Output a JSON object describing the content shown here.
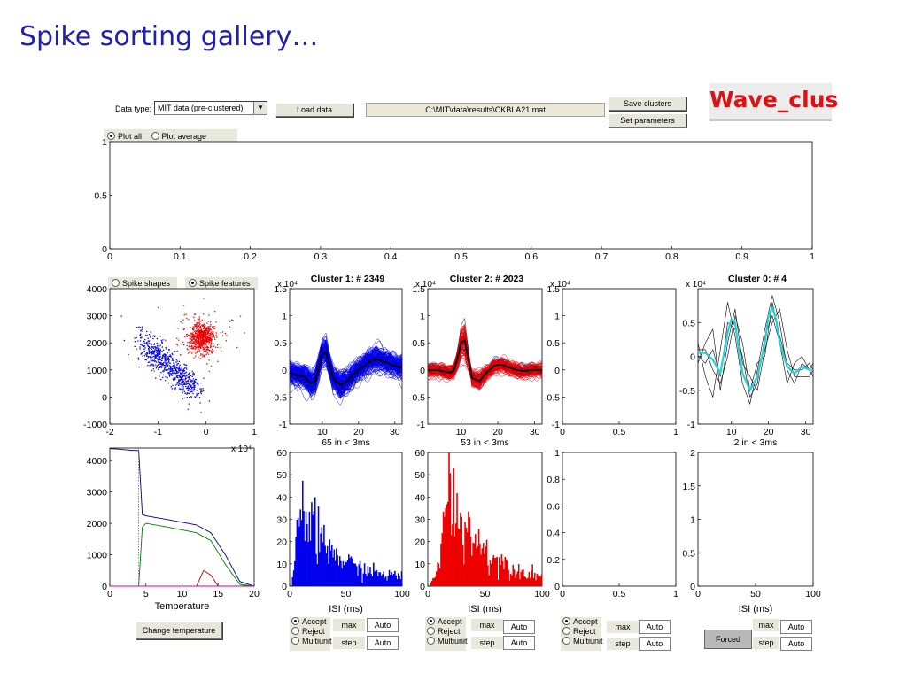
{
  "slide_title": "Spike sorting gallery…",
  "logo_text": "Wave_clus",
  "controls": {
    "data_type_label": "Data type:",
    "data_type_value": "MIT data (pre-clustered)",
    "load_data": "Load data",
    "file_path": "C:\\MIT\\data\\results\\CKBLA21.mat",
    "save_clusters": "Save clusters",
    "set_parameters": "Set parameters",
    "plot_all": "Plot all",
    "plot_average": "Plot average",
    "spike_shapes": "Spike shapes",
    "spike_features": "Spike features",
    "change_temperature": "Change temperature",
    "forced": "Forced"
  },
  "cluster_controls": {
    "accept": "Accept",
    "reject": "Reject",
    "multiunit": "Multiunit",
    "max": "max",
    "step": "step",
    "auto": "Auto"
  },
  "colors": {
    "title": "#1f1fb0",
    "logo": "#e01010",
    "cluster1": "#0000ee",
    "cluster2": "#ee0000",
    "cluster0_mean": "#22d0d8"
  },
  "chart_data": [
    {
      "id": "top_axes",
      "type": "line",
      "title": "",
      "xlabel": "",
      "ylabel": "",
      "xlim": [
        0,
        1
      ],
      "ylim": [
        0,
        1
      ],
      "xticks": [
        "0",
        "0.1",
        "0.2",
        "0.3",
        "0.4",
        "0.5",
        "0.6",
        "0.7",
        "0.8",
        "0.9",
        "1"
      ],
      "yticks": [
        "0",
        "0.5",
        "1"
      ],
      "series": []
    },
    {
      "id": "feature_scatter",
      "type": "scatter",
      "title": "",
      "xlabel": "",
      "ylabel": "",
      "xlim": [
        -2,
        1
      ],
      "ylim": [
        -1000,
        4000
      ],
      "xticks": [
        "-2",
        "-1",
        "0",
        "1"
      ],
      "yticks": [
        "-1000",
        "0",
        "1000",
        "2000",
        "3000",
        "4000"
      ],
      "series": [
        {
          "color": "#0000ee",
          "centers": [
            [
              -1.05,
              1600
            ],
            [
              -0.5,
              700
            ]
          ],
          "count": 2349
        },
        {
          "color": "#ee0000",
          "centers": [
            [
              -0.1,
              2200
            ]
          ],
          "count": 2023
        },
        {
          "color": "#888888",
          "centers": [
            [
              -0.6,
              1500
            ]
          ],
          "count": 4
        }
      ]
    },
    {
      "id": "temperature",
      "type": "line",
      "title": "",
      "xlabel": "Temperature",
      "ylabel": "",
      "xlim": [
        0,
        20
      ],
      "ylim": [
        0,
        4400
      ],
      "xticks": [
        "0",
        "5",
        "10",
        "15",
        "20"
      ],
      "yticks": [
        "0",
        "1000",
        "2000",
        "3000",
        "4000"
      ],
      "exponent": "x 10⁴",
      "selected_temperature": 4,
      "series": [
        {
          "color": "#000080",
          "x": [
            0,
            1,
            2,
            3,
            4,
            4.5,
            5,
            8,
            12,
            14,
            16,
            18,
            20
          ],
          "y": [
            4380,
            4370,
            4350,
            4330,
            4320,
            2280,
            2240,
            2120,
            1950,
            1700,
            1000,
            150,
            0
          ]
        },
        {
          "color": "#008000",
          "x": [
            0,
            4,
            4.5,
            5,
            8,
            12,
            14,
            16,
            18,
            20
          ],
          "y": [
            0,
            0,
            1880,
            2000,
            1880,
            1700,
            1450,
            700,
            60,
            0
          ]
        },
        {
          "color": "#c00000",
          "x": [
            0,
            12,
            13,
            14,
            15,
            20
          ],
          "y": [
            0,
            0,
            500,
            350,
            0,
            0
          ]
        },
        {
          "color": "#cc00cc",
          "x": [
            0,
            18,
            19,
            20
          ],
          "y": [
            0,
            0,
            20,
            0
          ]
        }
      ]
    },
    {
      "id": "cluster1_waveforms",
      "type": "line",
      "title": "Cluster 1:  # 2349",
      "subtitle": "65 in < 3ms",
      "exponent": "x 10⁴",
      "color": "#0000ee",
      "xlim": [
        1,
        32
      ],
      "ylim": [
        -1,
        1.5
      ],
      "xticks": [
        "10",
        "20",
        "30"
      ],
      "yticks": [
        "-1",
        "-0.5",
        "0",
        "0.5",
        "1",
        "1.5"
      ],
      "mean": {
        "x": [
          1,
          3,
          5,
          7,
          8,
          9,
          10,
          11,
          12,
          13,
          15,
          17,
          19,
          21,
          23,
          25,
          27,
          29,
          31,
          32
        ],
        "y": [
          -0.05,
          -0.1,
          -0.12,
          -0.25,
          -0.2,
          0.05,
          0.3,
          0.32,
          0.1,
          -0.15,
          -0.28,
          -0.2,
          -0.05,
          0.05,
          0.15,
          0.2,
          0.15,
          0.1,
          0.05,
          0.05
        ]
      }
    },
    {
      "id": "cluster2_waveforms",
      "type": "line",
      "title": "Cluster 2:  # 2023",
      "subtitle": "53 in < 3ms",
      "exponent": "x 10⁴",
      "color": "#ee0000",
      "xlim": [
        1,
        32
      ],
      "ylim": [
        -1,
        1.5
      ],
      "xticks": [
        "10",
        "20",
        "30"
      ],
      "yticks": [
        "-1",
        "-0.5",
        "0",
        "0.5",
        "1",
        "1.5"
      ],
      "mean": {
        "x": [
          1,
          3,
          5,
          7,
          8,
          9,
          10,
          11,
          12,
          13,
          15,
          17,
          19,
          21,
          23,
          25,
          27,
          29,
          31,
          32
        ],
        "y": [
          0,
          0,
          -0.02,
          -0.05,
          -0.02,
          0.2,
          0.5,
          0.55,
          0.2,
          -0.15,
          -0.2,
          -0.05,
          0.08,
          0.1,
          0.05,
          0,
          -0.02,
          0,
          0,
          0
        ]
      }
    },
    {
      "id": "cluster3_waveforms",
      "type": "line",
      "title": "",
      "exponent": "x 10⁴",
      "xlim": [
        0,
        1
      ],
      "ylim": [
        -1,
        1.5
      ],
      "xticks": [
        "0",
        "0.5",
        "1"
      ],
      "yticks": [
        "-1",
        "-0.5",
        "0",
        "0.5",
        "1",
        "1.5"
      ]
    },
    {
      "id": "cluster0_waveforms",
      "type": "line",
      "title": "Cluster 0:  # 4",
      "subtitle": "2 in < 3ms",
      "exponent": "x 10⁴",
      "color": "#22d0d8",
      "xlim": [
        1,
        32
      ],
      "ylim": [
        -1,
        1
      ],
      "xticks": [
        "10",
        "20",
        "30"
      ],
      "yticks": [
        "-1",
        "-0.5",
        "0",
        "0.5"
      ],
      "mean": {
        "x": [
          1,
          3,
          5,
          7,
          9,
          10,
          11,
          12,
          13,
          15,
          17,
          19,
          20,
          21,
          22,
          23,
          25,
          27,
          29,
          31,
          32
        ],
        "y": [
          0.05,
          0.05,
          -0.05,
          -0.25,
          0.35,
          0.55,
          0.5,
          0.1,
          -0.25,
          -0.5,
          -0.3,
          0.2,
          0.6,
          0.72,
          0.55,
          0.2,
          -0.15,
          -0.25,
          -0.15,
          -0.2,
          -0.2
        ]
      },
      "traces": [
        {
          "x": [
            1,
            3,
            5,
            7,
            9,
            11,
            13,
            15,
            17,
            19,
            21,
            23,
            25,
            27,
            29,
            31,
            32
          ],
          "y": [
            0.2,
            -0.3,
            -0.6,
            0.1,
            0.8,
            0.3,
            -0.4,
            -0.7,
            -0.2,
            0.4,
            0.9,
            0.5,
            -0.2,
            -0.4,
            -0.1,
            -0.2,
            -0.1
          ]
        },
        {
          "x": [
            1,
            3,
            5,
            7,
            9,
            11,
            13,
            15,
            17,
            19,
            21,
            23,
            25,
            27,
            29,
            31,
            32
          ],
          "y": [
            -0.1,
            0.2,
            0.4,
            -0.5,
            0.2,
            0.7,
            -0.1,
            -0.3,
            -0.5,
            0.1,
            0.5,
            0.7,
            0.1,
            -0.3,
            -0.3,
            -0.3,
            -0.2
          ]
        },
        {
          "x": [
            1,
            3,
            5,
            7,
            9,
            11,
            13,
            15,
            17,
            19,
            21,
            23,
            25,
            27,
            29,
            31,
            32
          ],
          "y": [
            0.0,
            -0.1,
            0.1,
            -0.3,
            0.5,
            0.4,
            0.0,
            -0.6,
            -0.4,
            0.3,
            0.6,
            0.2,
            -0.4,
            -0.1,
            0.0,
            -0.2,
            -0.3
          ]
        },
        {
          "x": [
            1,
            3,
            5,
            7,
            9,
            11,
            13,
            15,
            17,
            19,
            21,
            23,
            25,
            27,
            29,
            31,
            32
          ],
          "y": [
            0.1,
            0.1,
            -0.2,
            -0.4,
            0.0,
            0.6,
            0.2,
            -0.5,
            -0.1,
            0.0,
            0.8,
            0.3,
            -0.1,
            -0.2,
            -0.2,
            -0.1,
            -0.2
          ]
        }
      ]
    },
    {
      "id": "cluster1_isi",
      "type": "bar",
      "xlabel": "ISI (ms)",
      "color": "#0000ee",
      "xlim": [
        0,
        100
      ],
      "ylim": [
        0,
        60
      ],
      "xticks": [
        "0",
        "50",
        "100"
      ],
      "yticks": [
        "0",
        "10",
        "20",
        "30",
        "40",
        "50",
        "60"
      ],
      "shape": {
        "peak_x": 8,
        "peak": 38,
        "decay": 28,
        "floor": 3
      }
    },
    {
      "id": "cluster2_isi",
      "type": "bar",
      "xlabel": "ISI (ms)",
      "color": "#ee0000",
      "xlim": [
        0,
        100
      ],
      "ylim": [
        0,
        60
      ],
      "xticks": [
        "0",
        "50",
        "100"
      ],
      "yticks": [
        "0",
        "10",
        "20",
        "30",
        "40",
        "50",
        "60"
      ],
      "shape": {
        "peak_x": 17,
        "peak": 44,
        "decay": 30,
        "floor": 2
      }
    },
    {
      "id": "cluster3_isi",
      "type": "bar",
      "xlabel": "",
      "xlim": [
        0,
        1
      ],
      "ylim": [
        0,
        1
      ],
      "xticks": [
        "0",
        "0.5",
        "1"
      ],
      "yticks": [
        "0",
        "0.2",
        "0.4",
        "0.6",
        "0.8",
        "1"
      ]
    },
    {
      "id": "cluster0_isi",
      "type": "bar",
      "xlabel": "ISI (ms)",
      "xlim": [
        0,
        100
      ],
      "ylim": [
        0,
        2
      ],
      "xticks": [
        "0",
        "50",
        "100"
      ],
      "yticks": [
        "0",
        "0.5",
        "1",
        "1.5",
        "2"
      ]
    }
  ]
}
